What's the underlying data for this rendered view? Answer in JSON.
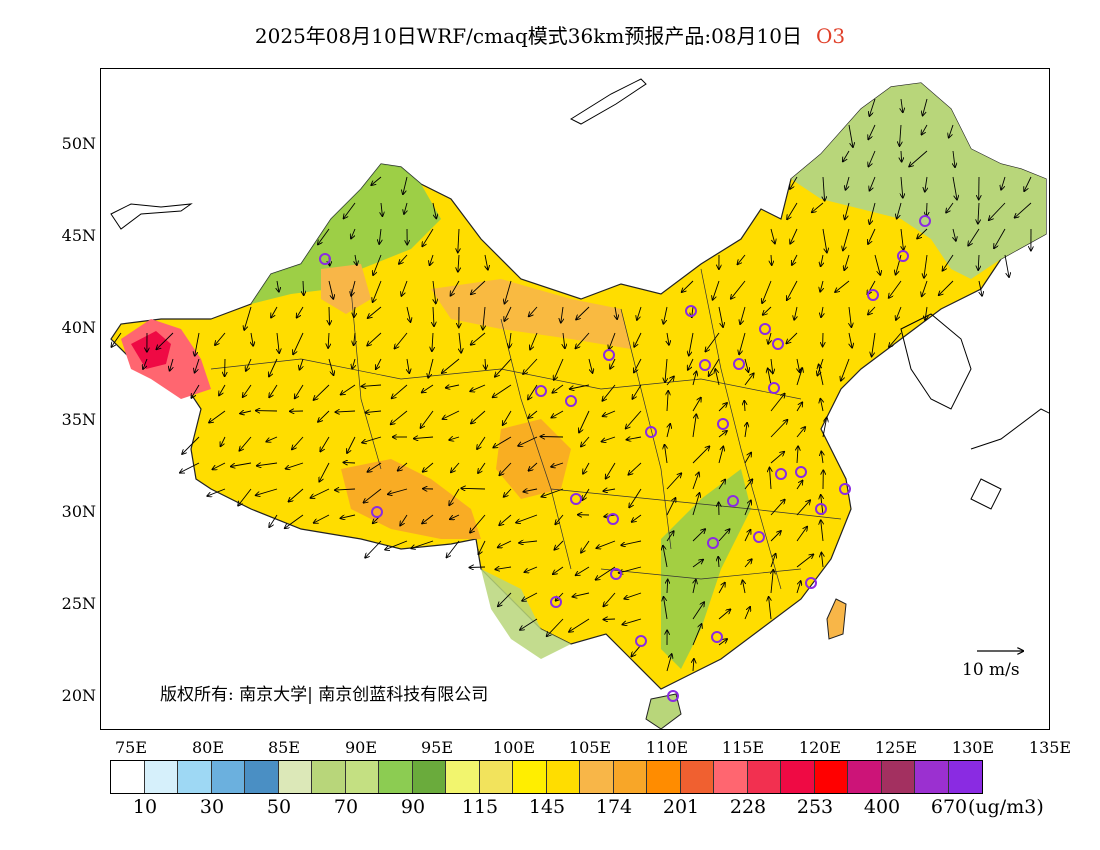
{
  "title": {
    "main": "2025年08月10日WRF/cmaq模式36km预报产品:08月10日",
    "species": "O3",
    "species_color": "#e0402a"
  },
  "map": {
    "lat_labels": [
      "50N",
      "45N",
      "40N",
      "35N",
      "30N",
      "25N",
      "20N"
    ],
    "lon_labels": [
      "75E",
      "80E",
      "85E",
      "90E",
      "95E",
      "100E",
      "105E",
      "110E",
      "115E",
      "120E",
      "125E",
      "130E",
      "135E"
    ],
    "lon_range": [
      73,
      135
    ],
    "lat_range": [
      18,
      54
    ],
    "wind_reference_label": "10 m/s",
    "copyright": "版权所有: 南京大学| 南京创蓝科技有限公司",
    "station_marker_color": "#8a2be2"
  },
  "colorbar": {
    "colors": [
      "#ffffff",
      "#d6f0fb",
      "#9ed8f4",
      "#6bb0de",
      "#4a8fc4",
      "#dce8b8",
      "#b8d67a",
      "#c4e082",
      "#8ccc52",
      "#6aab3c",
      "#f2f56e",
      "#f2e35c",
      "#ffee00",
      "#ffdd00",
      "#f8b648",
      "#f8a628",
      "#ff8c00",
      "#f06030",
      "#ff6670",
      "#f23050",
      "#ef0a44",
      "#ff0000",
      "#cc1478",
      "#a33060",
      "#9b30d0",
      "#8a2be2"
    ],
    "labels": [
      "10",
      "30",
      "50",
      "70",
      "90",
      "115",
      "145",
      "174",
      "201",
      "228",
      "253",
      "400",
      "670"
    ],
    "unit": "(ug/m3)"
  }
}
